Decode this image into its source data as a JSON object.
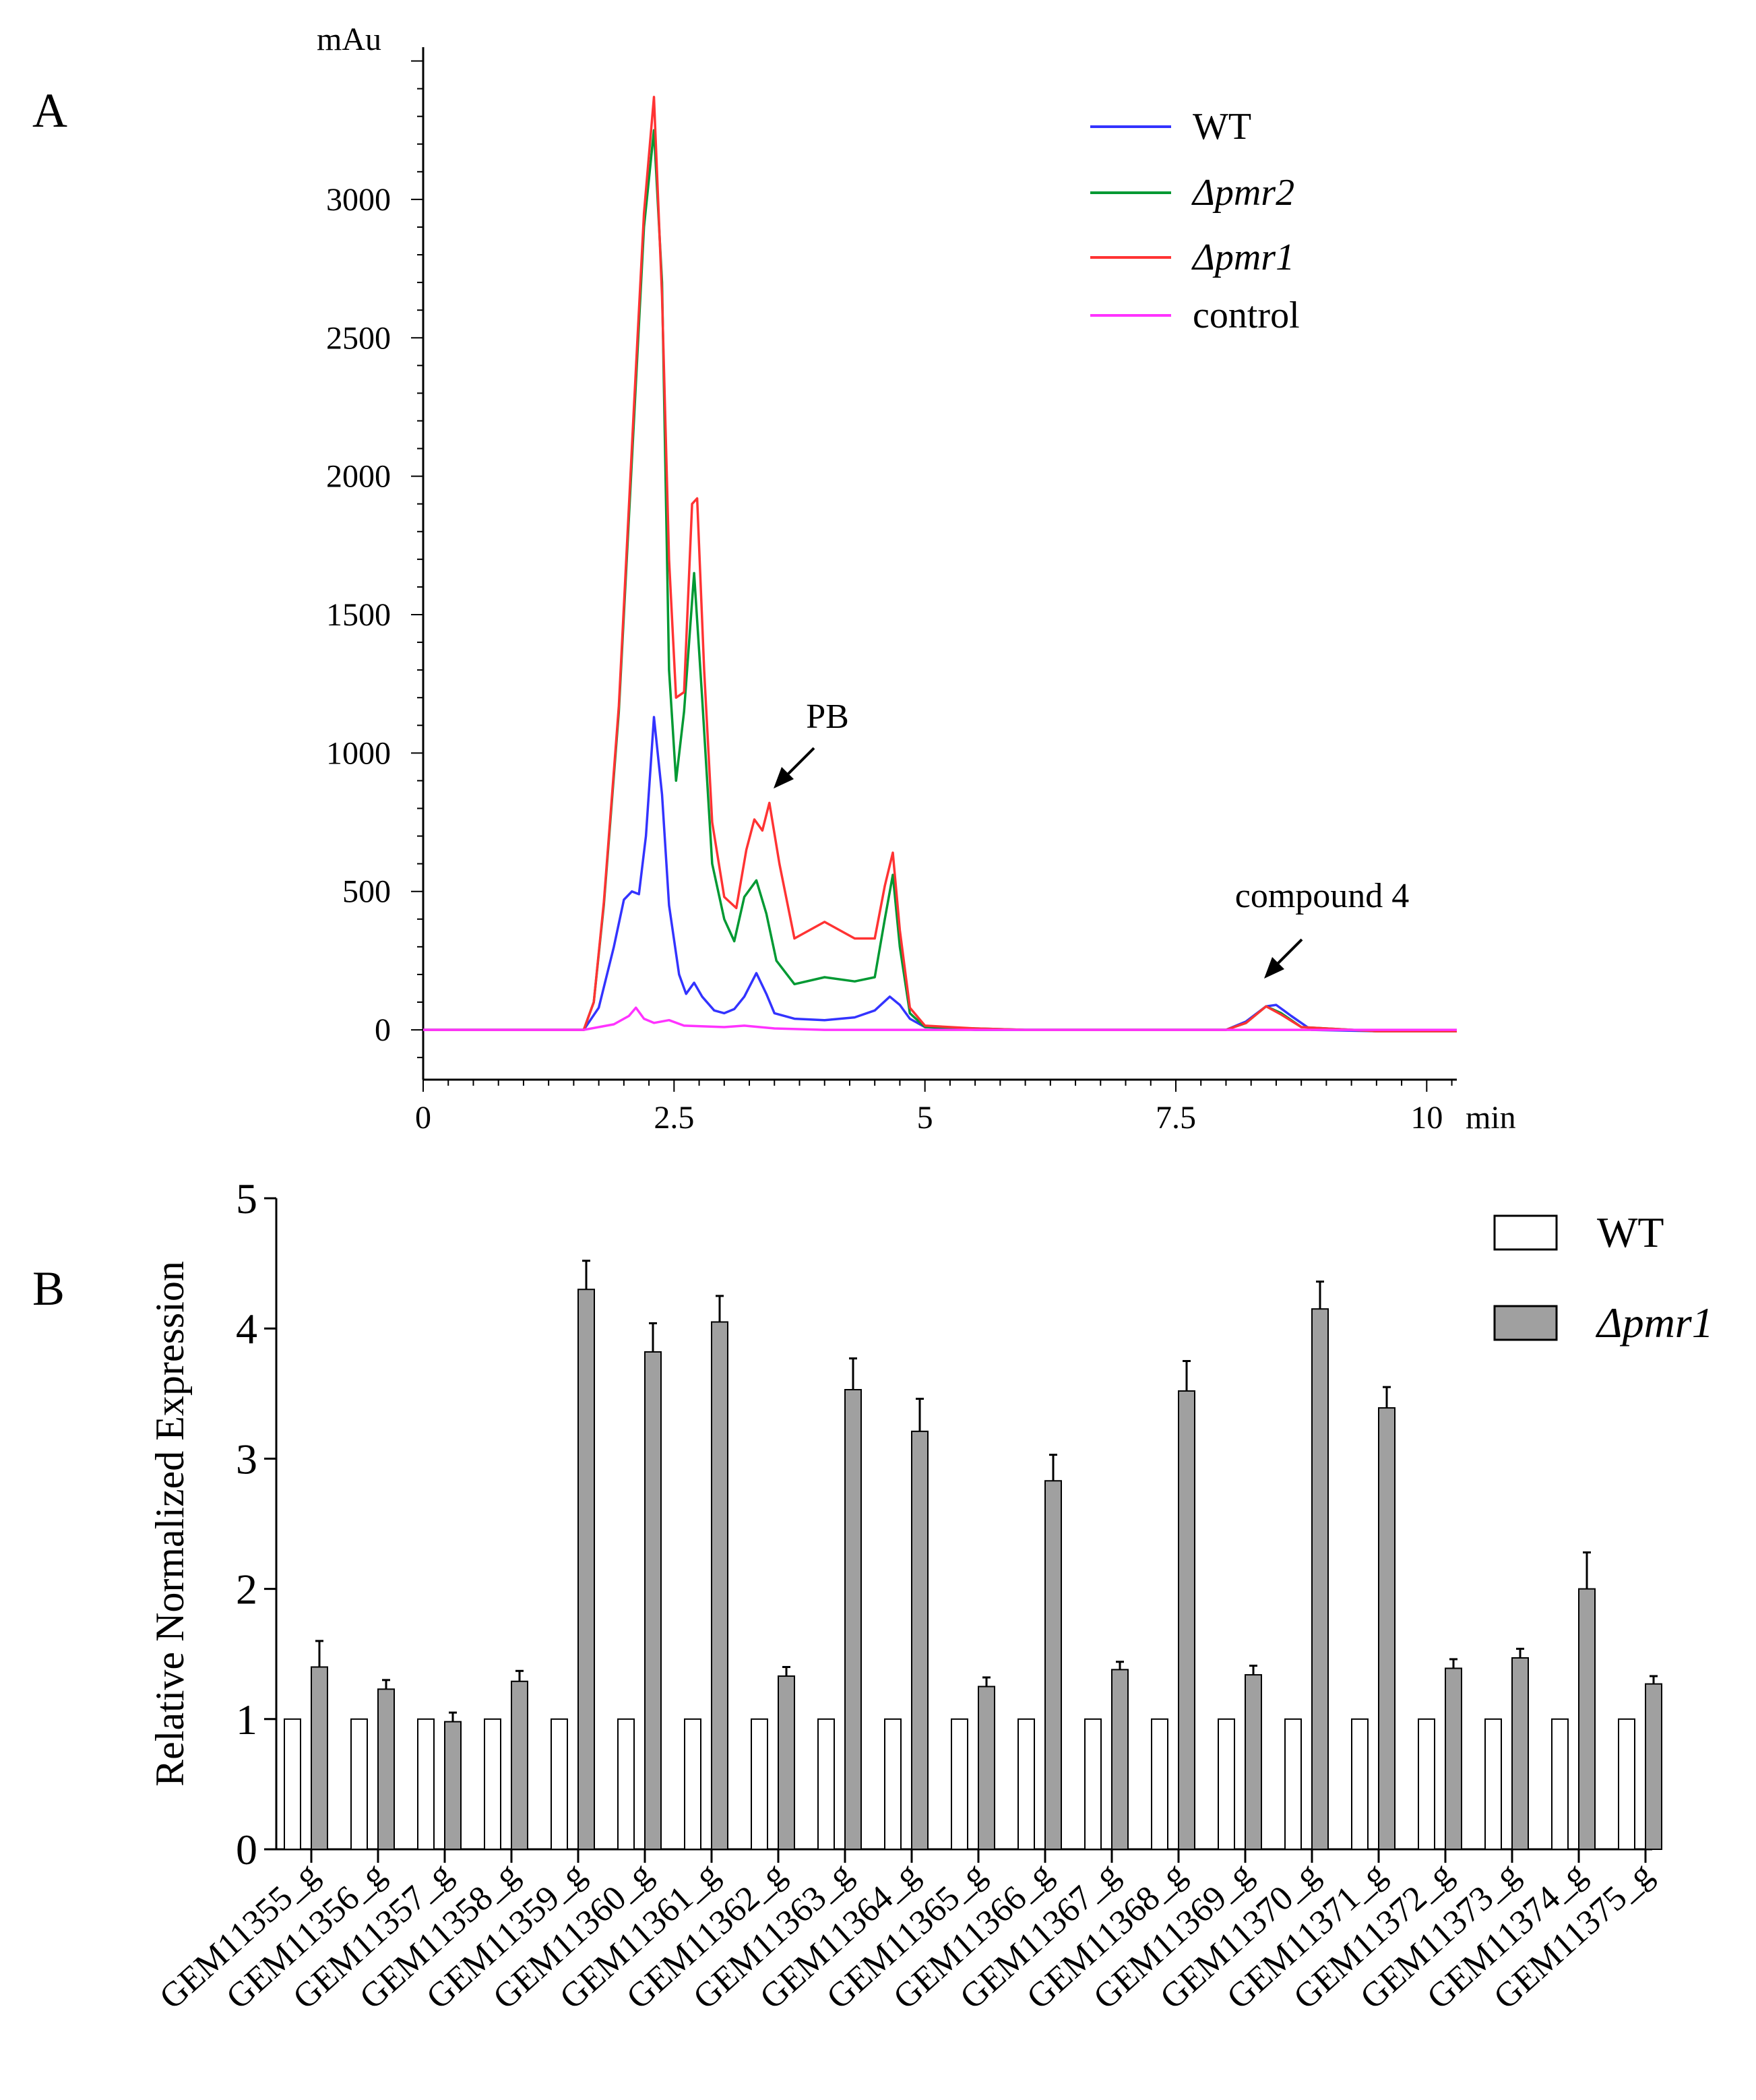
{
  "chart_data": [
    {
      "panel": "A",
      "type": "line",
      "ylabel": "mAu",
      "xlabel": "min",
      "xlim": [
        0,
        10.3
      ],
      "ylim": [
        -180,
        3550
      ],
      "x_ticks": [
        0,
        2.5,
        5,
        7.5,
        10
      ],
      "x_tick_labels": [
        "0",
        "2.5",
        "5",
        "7.5",
        "10"
      ],
      "y_ticks": [
        0,
        500,
        1000,
        1500,
        2000,
        2500,
        3000
      ],
      "y_tick_labels": [
        "0",
        "500",
        "1000",
        "1500",
        "2000",
        "2500",
        "3000"
      ],
      "grid": false,
      "legend_position": "top-right",
      "series": [
        {
          "name": "WT",
          "color": "#3333ff",
          "points": [
            [
              0,
              0
            ],
            [
              1.6,
              0
            ],
            [
              1.75,
              80
            ],
            [
              1.9,
              300
            ],
            [
              2.0,
              470
            ],
            [
              2.08,
              500
            ],
            [
              2.15,
              490
            ],
            [
              2.22,
              700
            ],
            [
              2.3,
              1130
            ],
            [
              2.38,
              850
            ],
            [
              2.45,
              450
            ],
            [
              2.55,
              200
            ],
            [
              2.62,
              130
            ],
            [
              2.7,
              170
            ],
            [
              2.78,
              120
            ],
            [
              2.9,
              70
            ],
            [
              3.0,
              60
            ],
            [
              3.1,
              75
            ],
            [
              3.2,
              120
            ],
            [
              3.32,
              205
            ],
            [
              3.42,
              130
            ],
            [
              3.5,
              60
            ],
            [
              3.7,
              40
            ],
            [
              4.0,
              35
            ],
            [
              4.3,
              45
            ],
            [
              4.5,
              70
            ],
            [
              4.65,
              120
            ],
            [
              4.75,
              90
            ],
            [
              4.85,
              40
            ],
            [
              5.0,
              10
            ],
            [
              5.5,
              0
            ],
            [
              8.0,
              0
            ],
            [
              8.2,
              30
            ],
            [
              8.4,
              85
            ],
            [
              8.5,
              90
            ],
            [
              8.65,
              50
            ],
            [
              8.85,
              0
            ],
            [
              9.5,
              -5
            ],
            [
              10.3,
              -5
            ]
          ]
        },
        {
          "name": "Δpmr2",
          "color": "#009933",
          "points": [
            [
              0,
              0
            ],
            [
              1.6,
              0
            ],
            [
              1.7,
              100
            ],
            [
              1.8,
              450
            ],
            [
              1.95,
              1150
            ],
            [
              2.1,
              2200
            ],
            [
              2.2,
              2900
            ],
            [
              2.3,
              3250
            ],
            [
              2.38,
              2700
            ],
            [
              2.45,
              1300
            ],
            [
              2.52,
              900
            ],
            [
              2.6,
              1150
            ],
            [
              2.7,
              1650
            ],
            [
              2.78,
              1200
            ],
            [
              2.88,
              600
            ],
            [
              3.0,
              400
            ],
            [
              3.1,
              320
            ],
            [
              3.2,
              480
            ],
            [
              3.32,
              540
            ],
            [
              3.42,
              420
            ],
            [
              3.52,
              250
            ],
            [
              3.7,
              165
            ],
            [
              4.0,
              190
            ],
            [
              4.3,
              175
            ],
            [
              4.5,
              190
            ],
            [
              4.6,
              400
            ],
            [
              4.68,
              560
            ],
            [
              4.75,
              300
            ],
            [
              4.85,
              60
            ],
            [
              5.0,
              10
            ],
            [
              5.5,
              5
            ],
            [
              6.0,
              0
            ],
            [
              8.0,
              0
            ],
            [
              8.2,
              25
            ],
            [
              8.4,
              85
            ],
            [
              8.55,
              60
            ],
            [
              8.75,
              10
            ],
            [
              9.5,
              -5
            ],
            [
              10.3,
              -5
            ]
          ]
        },
        {
          "name": "Δpmr1",
          "color": "#ff3333",
          "points": [
            [
              0,
              0
            ],
            [
              1.6,
              0
            ],
            [
              1.7,
              100
            ],
            [
              1.8,
              460
            ],
            [
              1.95,
              1170
            ],
            [
              2.1,
              2250
            ],
            [
              2.2,
              2950
            ],
            [
              2.3,
              3370
            ],
            [
              2.38,
              2650
            ],
            [
              2.45,
              1700
            ],
            [
              2.52,
              1200
            ],
            [
              2.6,
              1220
            ],
            [
              2.68,
              1900
            ],
            [
              2.73,
              1920
            ],
            [
              2.8,
              1300
            ],
            [
              2.88,
              750
            ],
            [
              3.0,
              480
            ],
            [
              3.12,
              440
            ],
            [
              3.22,
              650
            ],
            [
              3.3,
              760
            ],
            [
              3.38,
              720
            ],
            [
              3.45,
              820
            ],
            [
              3.55,
              600
            ],
            [
              3.7,
              330
            ],
            [
              4.0,
              390
            ],
            [
              4.3,
              330
            ],
            [
              4.5,
              330
            ],
            [
              4.6,
              520
            ],
            [
              4.68,
              640
            ],
            [
              4.75,
              360
            ],
            [
              4.85,
              80
            ],
            [
              5.0,
              15
            ],
            [
              5.5,
              5
            ],
            [
              6.0,
              0
            ],
            [
              8.0,
              0
            ],
            [
              8.2,
              25
            ],
            [
              8.4,
              85
            ],
            [
              8.55,
              55
            ],
            [
              8.75,
              10
            ],
            [
              9.5,
              -5
            ],
            [
              10.3,
              -5
            ]
          ]
        },
        {
          "name": "control",
          "color": "#ff33ff",
          "points": [
            [
              0,
              0
            ],
            [
              1.6,
              0
            ],
            [
              1.9,
              20
            ],
            [
              2.05,
              50
            ],
            [
              2.12,
              80
            ],
            [
              2.2,
              40
            ],
            [
              2.3,
              25
            ],
            [
              2.45,
              35
            ],
            [
              2.6,
              15
            ],
            [
              3.0,
              10
            ],
            [
              3.2,
              15
            ],
            [
              3.5,
              5
            ],
            [
              4.0,
              0
            ],
            [
              10.3,
              0
            ]
          ]
        }
      ],
      "annotations": [
        {
          "text": "PB",
          "x": 3.45,
          "y": 900
        },
        {
          "text": "compound 4",
          "x": 8.45,
          "y": 180
        }
      ]
    },
    {
      "panel": "B",
      "type": "bar",
      "ylabel": "Relative Normalized Expression",
      "ylim": [
        0,
        5
      ],
      "y_ticks": [
        0,
        1,
        2,
        3,
        4,
        5
      ],
      "legend_position": "top-right",
      "categories": [
        "GEM11355_g",
        "GEM11356_g",
        "GEM11357_g",
        "GEM11358_g",
        "GEM11359_g",
        "GEM11360_g",
        "GEM11361_g",
        "GEM11362_g",
        "GEM11363_g",
        "GEM11364_g",
        "GEM11365_g",
        "GEM11366_g",
        "GEM11367_g",
        "GEM11368_g",
        "GEM11369_g",
        "GEM11370_g",
        "GEM11371_g",
        "GEM11372_g",
        "GEM11373_g",
        "GEM11374_g",
        "GEM11375_g"
      ],
      "series": [
        {
          "name": "WT",
          "color": "#ffffff",
          "values": [
            1,
            1,
            1,
            1,
            1,
            1,
            1,
            1,
            1,
            1,
            1,
            1,
            1,
            1,
            1,
            1,
            1,
            1,
            1,
            1,
            1
          ],
          "errors": [
            0,
            0,
            0,
            0,
            0,
            0,
            0,
            0,
            0,
            0,
            0,
            0,
            0,
            0,
            0,
            0,
            0,
            0,
            0,
            0,
            0
          ]
        },
        {
          "name": "Δpmr1",
          "color": "#a0a0a0",
          "values": [
            1.4,
            1.23,
            0.98,
            1.29,
            4.3,
            3.82,
            4.05,
            1.33,
            3.53,
            3.21,
            1.25,
            2.83,
            1.38,
            3.52,
            1.34,
            4.15,
            3.39,
            1.39,
            1.47,
            2.0,
            1.27
          ],
          "errors": [
            0.2,
            0.07,
            0.07,
            0.08,
            0.22,
            0.22,
            0.2,
            0.07,
            0.24,
            0.25,
            0.07,
            0.2,
            0.06,
            0.23,
            0.07,
            0.21,
            0.16,
            0.07,
            0.07,
            0.28,
            0.06
          ]
        }
      ]
    }
  ],
  "labels": {
    "panel_a": "A",
    "panel_b": "B"
  }
}
